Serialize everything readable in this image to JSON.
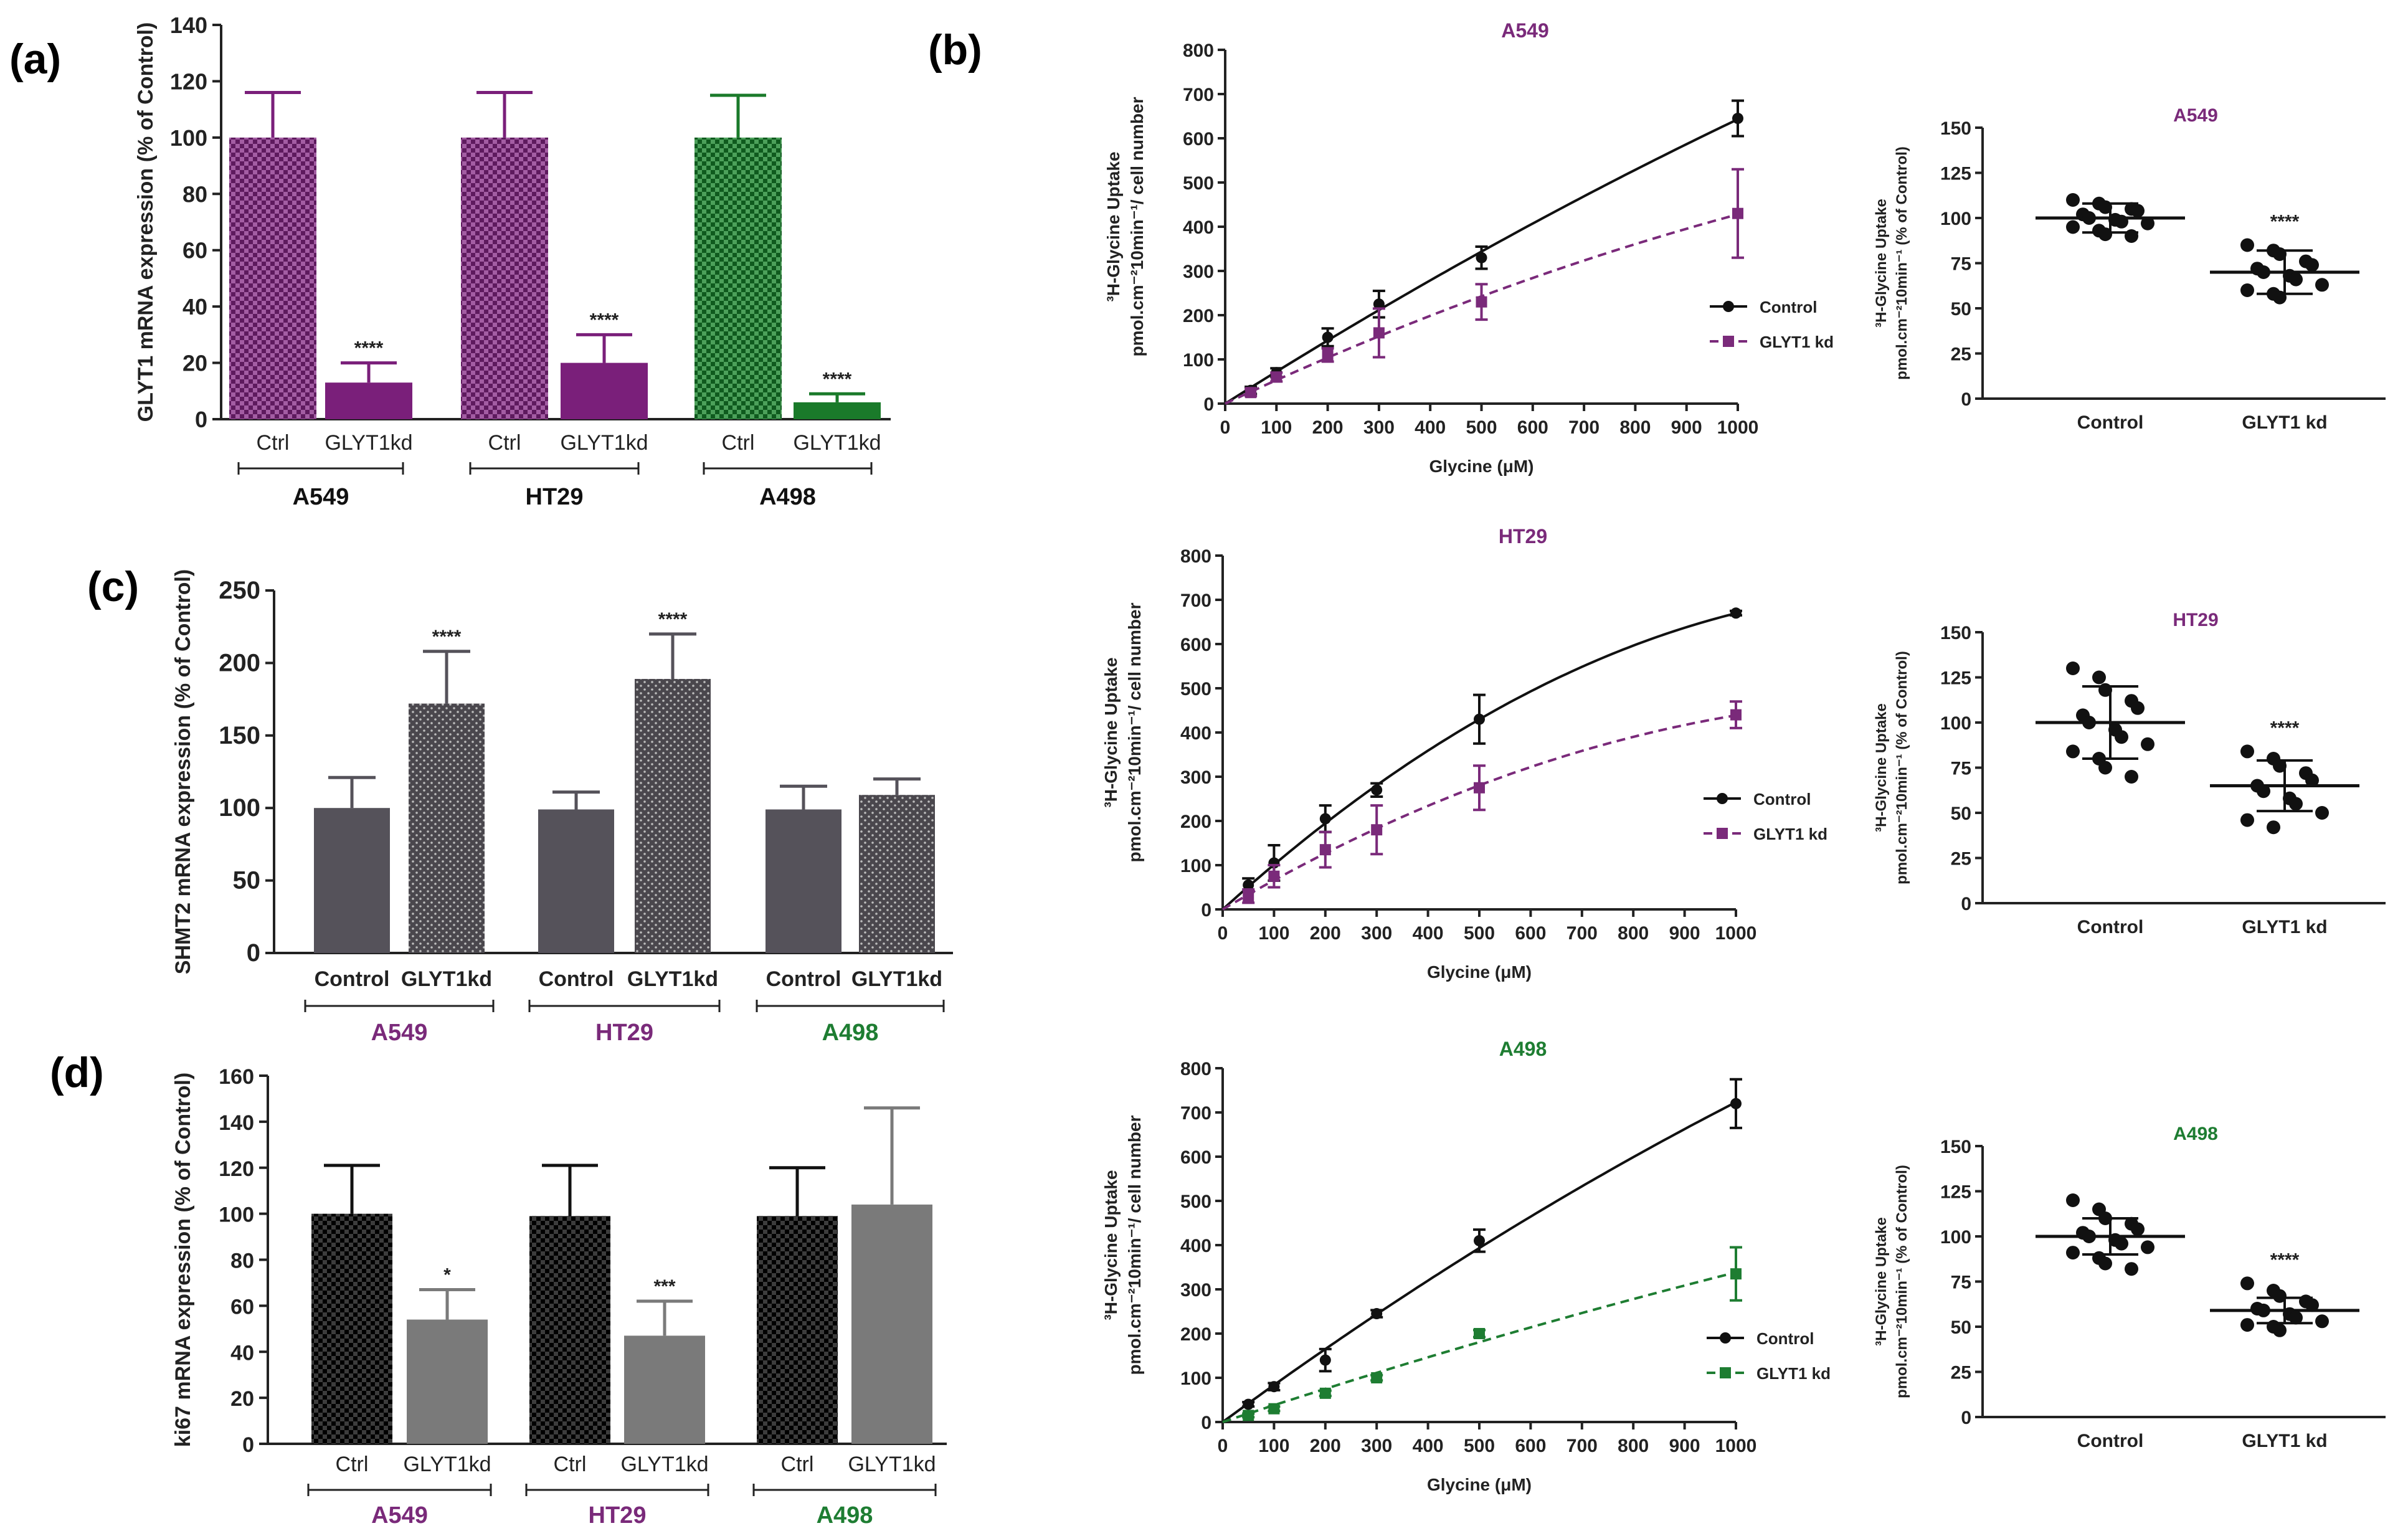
{
  "panel_labels": [
    "(a)",
    "(b)",
    "(c)",
    "(d)"
  ],
  "colors": {
    "purple": "#7a1f7a",
    "purple_text": "#7a2a7a",
    "green": "#1a7a2a",
    "green_text": "#1e7d32",
    "black": "#111111",
    "dark_gray": "#55525a",
    "gray": "#7a7a7a"
  },
  "chart_data": [
    {
      "id": "a",
      "type": "bar",
      "title": "",
      "ylabel": "GLYT1 mRNA expression (% of Control)",
      "ylim": [
        0,
        140
      ],
      "yticks": [
        0,
        20,
        40,
        60,
        80,
        100,
        120,
        140
      ],
      "categories": [
        "Ctrl",
        "GLYT1kd",
        "Ctrl",
        "GLYT1kd",
        "Ctrl",
        "GLYT1kd"
      ],
      "groups": [
        "A549",
        "HT29",
        "A498"
      ],
      "values": [
        100,
        13,
        100,
        20,
        100,
        6
      ],
      "errors": [
        16,
        7,
        16,
        10,
        15,
        3
      ],
      "significance": [
        "",
        "****",
        "",
        "****",
        "",
        "****"
      ]
    },
    {
      "id": "c",
      "type": "bar",
      "ylabel": "SHMT2 mRNA expression (% of Control)",
      "ylim": [
        0,
        250
      ],
      "yticks": [
        0,
        50,
        100,
        150,
        200,
        250
      ],
      "categories": [
        "Control",
        "GLYT1kd",
        "Control",
        "GLYT1kd",
        "Control",
        "GLYT1kd"
      ],
      "groups": [
        "A549",
        "HT29",
        "A498"
      ],
      "values": [
        100,
        172,
        99,
        189,
        99,
        109
      ],
      "errors": [
        21,
        36,
        12,
        31,
        16,
        11
      ],
      "significance": [
        "",
        "****",
        "",
        "****",
        "",
        ""
      ]
    },
    {
      "id": "d",
      "type": "bar",
      "ylabel": "ki67 mRNA expression (% of Control)",
      "ylim": [
        0,
        160
      ],
      "yticks": [
        0,
        20,
        40,
        60,
        80,
        100,
        120,
        140,
        160
      ],
      "categories": [
        "Ctrl",
        "GLYT1kd",
        "Ctrl",
        "GLYT1kd",
        "Ctrl",
        "GLYT1kd"
      ],
      "groups": [
        "A549",
        "HT29",
        "A498"
      ],
      "values": [
        100,
        54,
        99,
        47,
        99,
        104
      ],
      "errors": [
        21,
        13,
        22,
        15,
        21,
        42
      ],
      "significance": [
        "",
        "*",
        "",
        "***",
        "",
        ""
      ]
    },
    {
      "id": "b-line-A549",
      "type": "line",
      "title": "A549",
      "xlabel": "Glycine (μM)",
      "ylabel_line1": "³H-Glycine Uptake",
      "ylabel_line2": "pmol.cm⁻²10min⁻¹/ cell number",
      "xlim": [
        0,
        1000
      ],
      "ylim": [
        0,
        800
      ],
      "xticks": [
        0,
        100,
        200,
        300,
        400,
        500,
        600,
        700,
        800,
        900,
        1000
      ],
      "yticks": [
        0,
        100,
        200,
        300,
        400,
        500,
        600,
        700,
        800
      ],
      "series": [
        {
          "name": "Control",
          "x": [
            50,
            100,
            200,
            300,
            500,
            1000
          ],
          "y": [
            30,
            70,
            150,
            225,
            330,
            645
          ],
          "err": [
            8,
            10,
            20,
            30,
            25,
            40
          ]
        },
        {
          "name": "GLYT1 kd",
          "x": [
            50,
            100,
            200,
            300,
            500,
            1000
          ],
          "y": [
            25,
            60,
            110,
            160,
            230,
            430
          ],
          "err": [
            8,
            10,
            15,
            55,
            40,
            100
          ]
        }
      ]
    },
    {
      "id": "b-line-HT29",
      "type": "line",
      "title": "HT29",
      "xlabel": "Glycine (μM)",
      "ylabel_line1": "³H-Glycine Uptake",
      "ylabel_line2": "pmol.cm⁻²10min⁻¹/ cell number",
      "xlim": [
        0,
        1000
      ],
      "ylim": [
        0,
        800
      ],
      "xticks": [
        0,
        100,
        200,
        300,
        400,
        500,
        600,
        700,
        800,
        900,
        1000
      ],
      "yticks": [
        0,
        100,
        200,
        300,
        400,
        500,
        600,
        700,
        800
      ],
      "series": [
        {
          "name": "Control",
          "x": [
            50,
            100,
            200,
            300,
            500,
            1000
          ],
          "y": [
            55,
            105,
            205,
            270,
            430,
            670
          ],
          "err": [
            15,
            40,
            30,
            15,
            55,
            5
          ]
        },
        {
          "name": "GLYT1 kd",
          "x": [
            50,
            100,
            200,
            300,
            500,
            1000
          ],
          "y": [
            30,
            75,
            135,
            180,
            275,
            440
          ],
          "err": [
            15,
            25,
            40,
            55,
            50,
            30
          ]
        }
      ]
    },
    {
      "id": "b-line-A498",
      "type": "line",
      "title": "A498",
      "xlabel": "Glycine (μM)",
      "ylabel_line1": "³H-Glycine Uptake",
      "ylabel_line2": "pmol.cm⁻²10min⁻¹/ cell number",
      "xlim": [
        0,
        1000
      ],
      "ylim": [
        0,
        800
      ],
      "xticks": [
        0,
        100,
        200,
        300,
        400,
        500,
        600,
        700,
        800,
        900,
        1000
      ],
      "yticks": [
        0,
        100,
        200,
        300,
        400,
        500,
        600,
        700,
        800
      ],
      "series": [
        {
          "name": "Control",
          "x": [
            50,
            100,
            200,
            300,
            500,
            1000
          ],
          "y": [
            40,
            80,
            140,
            245,
            410,
            720
          ],
          "err": [
            5,
            8,
            25,
            8,
            25,
            55
          ]
        },
        {
          "name": "GLYT1 kd",
          "x": [
            50,
            100,
            200,
            300,
            500,
            1000
          ],
          "y": [
            15,
            30,
            65,
            100,
            200,
            335
          ],
          "err": [
            4,
            5,
            6,
            6,
            8,
            60
          ]
        }
      ]
    },
    {
      "id": "b-scatter-A549",
      "type": "scatter",
      "title": "A549",
      "ylabel_line1": "³H-Glycine Uptake",
      "ylabel_line2": "pmol.cm⁻²10min⁻¹ (% of Control)",
      "ylim": [
        0,
        150
      ],
      "yticks": [
        0,
        25,
        50,
        75,
        100,
        125,
        150
      ],
      "categories": [
        "Control",
        "GLYT1 kd"
      ],
      "means": [
        100,
        70
      ],
      "sd": [
        8,
        12
      ],
      "points": [
        [
          110,
          108,
          106,
          105,
          104,
          102,
          100,
          99,
          98,
          97,
          95,
          93,
          91,
          90
        ],
        [
          85,
          82,
          80,
          76,
          74,
          72,
          70,
          68,
          66,
          63,
          60,
          58,
          56
        ]
      ],
      "significance": "****"
    },
    {
      "id": "b-scatter-HT29",
      "type": "scatter",
      "title": "HT29",
      "ylabel_line1": "³H-Glycine Uptake",
      "ylabel_line2": "pmol.cm⁻²10min⁻¹ (% of Control)",
      "ylim": [
        0,
        150
      ],
      "yticks": [
        0,
        25,
        50,
        75,
        100,
        125,
        150
      ],
      "categories": [
        "Control",
        "GLYT1 kd"
      ],
      "means": [
        100,
        65
      ],
      "sd": [
        20,
        14
      ],
      "points": [
        [
          130,
          125,
          118,
          112,
          108,
          104,
          100,
          96,
          92,
          88,
          84,
          80,
          75,
          70
        ],
        [
          84,
          80,
          76,
          72,
          68,
          65,
          62,
          58,
          55,
          50,
          46,
          42
        ]
      ],
      "significance": "****"
    },
    {
      "id": "b-scatter-A498",
      "type": "scatter",
      "title": "A498",
      "ylabel_line1": "³H-Glycine Uptake",
      "ylabel_line2": "pmol.cm⁻²10min⁻¹ (% of Control)",
      "ylim": [
        0,
        150
      ],
      "yticks": [
        0,
        25,
        50,
        75,
        100,
        125,
        150
      ],
      "categories": [
        "Control",
        "GLYT1 kd"
      ],
      "means": [
        100,
        59
      ],
      "sd": [
        10,
        7
      ],
      "points": [
        [
          120,
          115,
          110,
          107,
          104,
          102,
          100,
          98,
          96,
          94,
          91,
          88,
          85,
          82
        ],
        [
          74,
          70,
          67,
          64,
          62,
          60,
          59,
          57,
          55,
          53,
          51,
          50,
          48
        ]
      ],
      "significance": "****"
    }
  ]
}
